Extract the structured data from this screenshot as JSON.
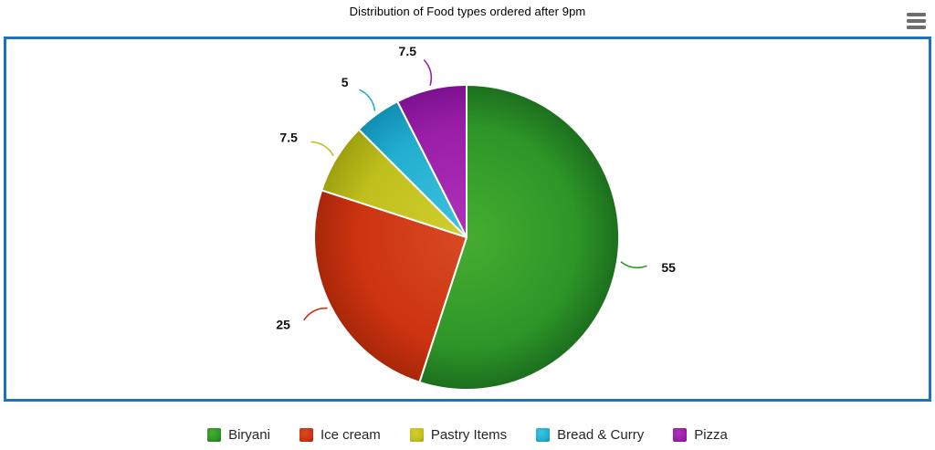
{
  "chart_data": {
    "type": "pie",
    "title": "Distribution of Food types ordered after 9pm",
    "legend_position": "bottom",
    "data_labels": "outside-with-leader-lines",
    "start_angle_deg": 0,
    "direction": "clockwise",
    "total": 100,
    "series": [
      {
        "label": "Biryani",
        "value": 55,
        "color": "#2e9628",
        "color_light": "#46ac30",
        "color_dark": "#1c6f1d"
      },
      {
        "label": "Ice cream",
        "value": 25,
        "color": "#cc3311",
        "color_light": "#d84a24",
        "color_dark": "#a82708"
      },
      {
        "label": "Pastry Items",
        "value": 7.5,
        "color": "#bfbf1d",
        "color_light": "#d0cf2e",
        "color_dark": "#9fa00f"
      },
      {
        "label": "Bread & Curry",
        "value": 5,
        "color": "#22aecf",
        "color_light": "#3fc2e0",
        "color_dark": "#118db3"
      },
      {
        "label": "Pizza",
        "value": 7.5,
        "color": "#9a1fa8",
        "color_light": "#ae32bc",
        "color_dark": "#7c1190"
      }
    ]
  },
  "icons": {
    "menu": "hamburger-menu-icon"
  },
  "colors": {
    "panel_border": "#1a73c2",
    "slice_label_text": "#111111",
    "legend_text": "#262626",
    "menu_icon": "#6e6e6e"
  }
}
